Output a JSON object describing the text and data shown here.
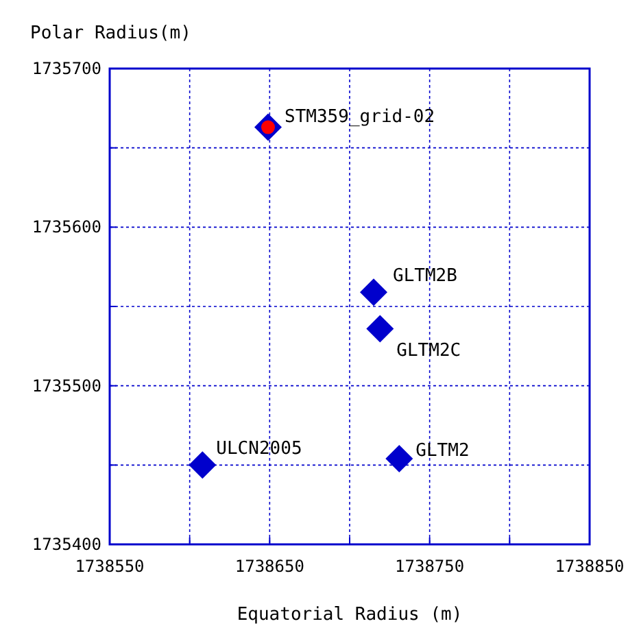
{
  "chart_data": {
    "type": "scatter",
    "xlabel": "Equatorial Radius (m)",
    "ylabel": "Polar Radius(m)",
    "xlim": [
      1738550,
      1738850
    ],
    "ylim": [
      1735400,
      1735700
    ],
    "xticks": [
      1738550,
      {
        "value": 1738600,
        "label": null
      },
      1738650,
      {
        "value": 1738700,
        "label": null
      },
      1738750,
      {
        "value": 1738800,
        "label": null
      },
      1738850
    ],
    "yticks": [
      1735400,
      {
        "value": 1735450,
        "label": null
      },
      1735500,
      {
        "value": 1735550,
        "label": null
      },
      1735600,
      {
        "value": 1735650,
        "label": null
      },
      1735700
    ],
    "grid": true,
    "line_style": "dotted",
    "legend": false,
    "series": [
      {
        "name": "STM359_grid-02",
        "color": "#0000cc",
        "marker": "diamond",
        "x": [
          1738649
        ],
        "values": [
          1735663
        ]
      },
      {
        "name": "GLTM2B",
        "color": "#0000cc",
        "marker": "diamond",
        "x": [
          1738715
        ],
        "values": [
          1735559
        ]
      },
      {
        "name": "GLTM2C",
        "color": "#0000cc",
        "marker": "diamond",
        "x": [
          1738719
        ],
        "values": [
          1735536
        ]
      },
      {
        "name": "ULCN2005",
        "color": "#0000cc",
        "marker": "diamond",
        "x": [
          1738608
        ],
        "values": [
          1735450
        ]
      },
      {
        "name": "GLTM2",
        "color": "#0000cc",
        "marker": "diamond",
        "x": [
          1738731
        ],
        "values": [
          1735454
        ]
      },
      {
        "color": "#ff0000",
        "marker": "circle",
        "x": [
          1738649
        ],
        "values": [
          1735663
        ]
      }
    ]
  }
}
